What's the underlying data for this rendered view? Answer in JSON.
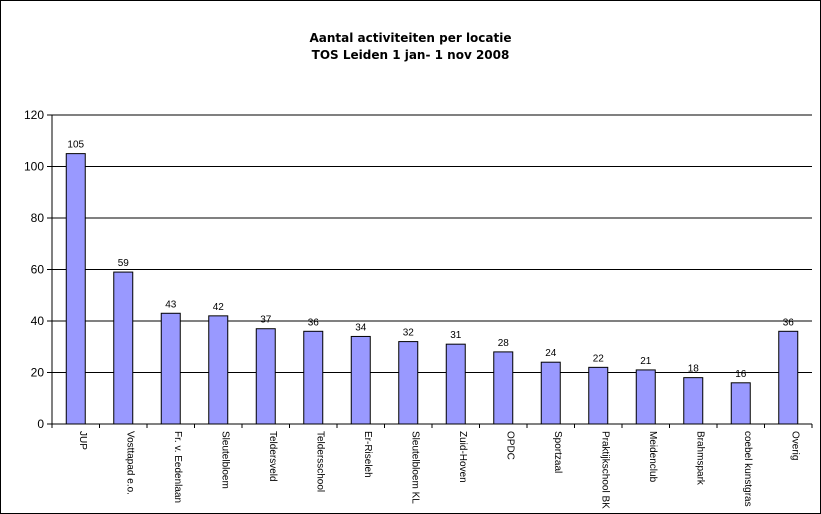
{
  "chart_data": {
    "type": "bar",
    "title": "Aantal activiteiten per locatie",
    "subtitle": "TOS Leiden 1 jan- 1 nov 2008",
    "categories": [
      "JUP",
      "Vosttapad e.o.",
      "Fr. v. Eedenlaan",
      "Sleutelbloem",
      "Teldersveld",
      "Teldersschool",
      "Er-Riseleh",
      "Sleutelbloem KL",
      "Zuid-Hoven",
      "OPDC",
      "Sportzaal",
      "Praktijkschool BK",
      "Meidenclub",
      "Brahmspark",
      "coebel kunstgras",
      "Overig"
    ],
    "values": [
      105,
      59,
      43,
      42,
      37,
      36,
      34,
      32,
      31,
      28,
      24,
      22,
      21,
      18,
      16,
      36
    ],
    "ylim": [
      0,
      120
    ],
    "yticks": [
      0,
      20,
      40,
      60,
      80,
      100,
      120
    ],
    "grid": true,
    "colors": {
      "bar_fill": "#9999ff",
      "bar_stroke": "#000000"
    }
  }
}
